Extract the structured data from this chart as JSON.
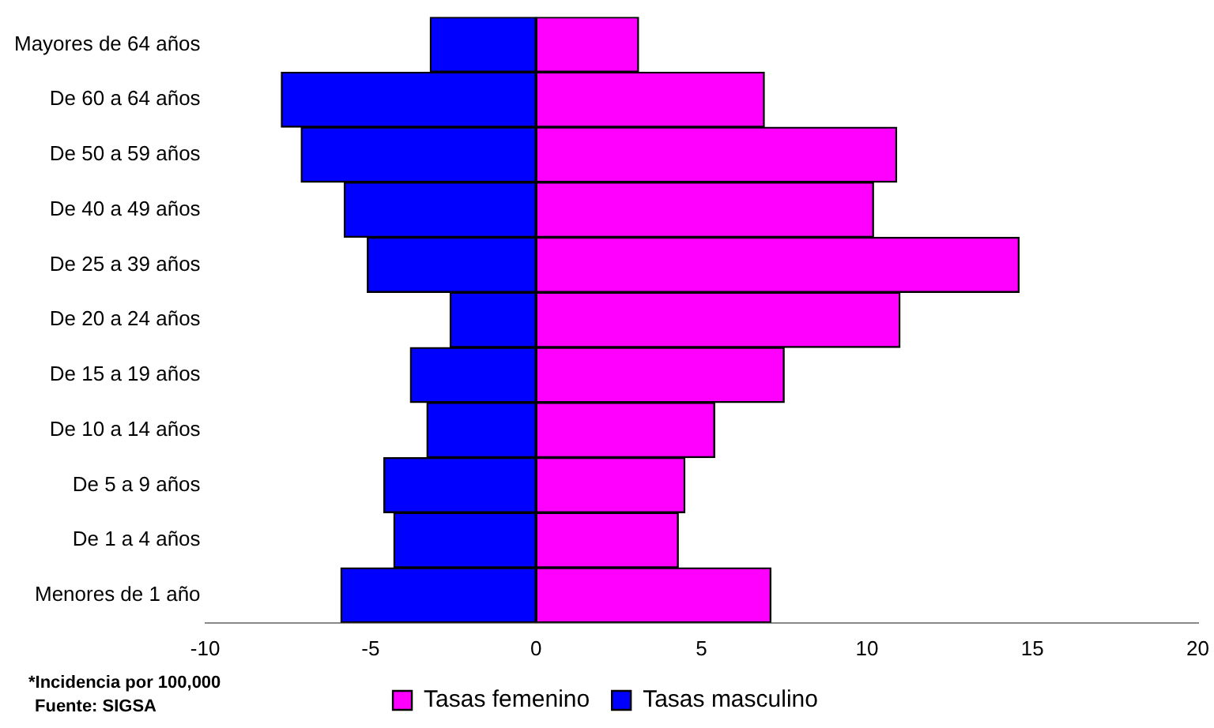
{
  "chart_data": {
    "type": "bar",
    "orientation": "horizontal",
    "stacked": true,
    "categories": [
      "Mayores de 64 años",
      "De 60 a 64 años",
      "De 50 a 59 años",
      "De 40 a 49 años",
      "De 25 a 39 años",
      "De 20 a 24 años",
      "De 15 a 19 años",
      "De 10 a 14 años",
      "De 5 a 9 años",
      "De 1 a 4 años",
      "Menores de 1 año"
    ],
    "series": [
      {
        "name": "Tasas femenino",
        "color": "#ff00ff",
        "values": [
          3.1,
          6.9,
          10.9,
          10.2,
          14.6,
          11.0,
          7.5,
          5.4,
          4.5,
          4.3,
          7.1
        ]
      },
      {
        "name": "Tasas masculino",
        "color": "#0000ff",
        "values": [
          -3.2,
          -7.7,
          -7.1,
          -5.8,
          -5.1,
          -2.6,
          -3.8,
          -3.3,
          -4.6,
          -4.3,
          -5.9
        ]
      }
    ],
    "xlim": [
      -10,
      20
    ],
    "xticks": [
      -10,
      -5,
      0,
      5,
      10,
      15,
      20
    ],
    "grid": false,
    "legend": "bottom",
    "annotations": [
      "*Incidencia por 100,000",
      "Fuente: SIGSA"
    ]
  }
}
